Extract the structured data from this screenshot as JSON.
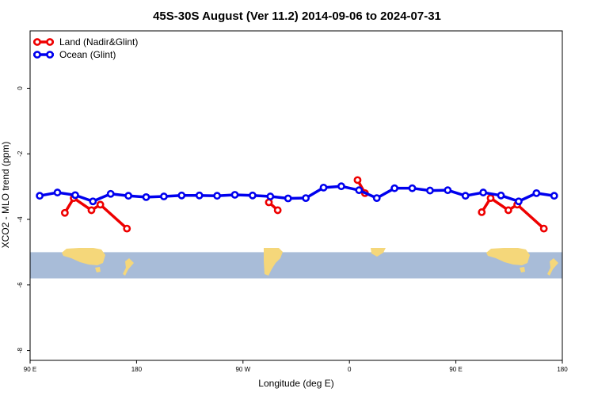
{
  "chart_data": {
    "type": "line",
    "title": "45S-30S August (Ver 11.2)   2014-09-06 to 2024-07-31",
    "xlabel": "Longitude (deg E)",
    "ylabel": "XCO2 - MLO trend (ppm)",
    "xlim": [
      90,
      450
    ],
    "ylim": [
      -8.3,
      1.75
    ],
    "xticks": [
      {
        "value": 90,
        "label": "90 E"
      },
      {
        "value": 162,
        "label": "180"
      },
      {
        "value": 234,
        "label": "90 W"
      },
      {
        "value": 306,
        "label": "0"
      },
      {
        "value": 378,
        "label": "90 E"
      },
      {
        "value": 450,
        "label": "180"
      }
    ],
    "yticks": [
      {
        "value": 0,
        "label": "0"
      },
      {
        "value": -2,
        "label": "-2"
      },
      {
        "value": -4,
        "label": "-4"
      },
      {
        "value": -6,
        "label": "-6"
      },
      {
        "value": -8,
        "label": "-8"
      }
    ],
    "map_strip": {
      "y_top": -5.0,
      "y_bottom": -5.8,
      "ocean_color": "#a8bcd8",
      "land_color": "#f5d77a"
    },
    "legend": {
      "placement": "top-left"
    },
    "series": [
      {
        "name": "Land (Nadir&Glint)",
        "color": "#ee0000",
        "segments": [
          [
            [
              113.5,
              -3.8
            ],
            [
              119.5,
              -3.35
            ],
            [
              131.5,
              -3.72
            ],
            [
              137.5,
              -3.55
            ],
            [
              155.5,
              -4.28
            ]
          ],
          [
            [
              251.5,
              -3.48
            ],
            [
              257.5,
              -3.72
            ]
          ],
          [
            [
              311.5,
              -2.8
            ],
            [
              316.5,
              -3.2
            ]
          ],
          [
            [
              395.5,
              -3.78
            ],
            [
              401.5,
              -3.35
            ],
            [
              413.5,
              -3.72
            ],
            [
              419.5,
              -3.55
            ],
            [
              437.5,
              -4.28
            ]
          ]
        ]
      },
      {
        "name": "Ocean (Glint)",
        "color": "#0000ee",
        "segments": [
          [
            [
              96.5,
              -3.28
            ],
            [
              108.5,
              -3.18
            ],
            [
              120.5,
              -3.26
            ],
            [
              132.5,
              -3.45
            ],
            [
              144.5,
              -3.22
            ],
            [
              156.5,
              -3.28
            ],
            [
              168.5,
              -3.32
            ],
            [
              180.5,
              -3.3
            ],
            [
              192.5,
              -3.27
            ],
            [
              204.5,
              -3.27
            ],
            [
              216.5,
              -3.28
            ],
            [
              228.5,
              -3.25
            ],
            [
              240.5,
              -3.27
            ],
            [
              252.5,
              -3.3
            ],
            [
              264.5,
              -3.36
            ],
            [
              276.5,
              -3.35
            ],
            [
              288.5,
              -3.03
            ],
            [
              300.5,
              -2.99
            ],
            [
              312.5,
              -3.11
            ],
            [
              324.5,
              -3.35
            ],
            [
              336.5,
              -3.05
            ],
            [
              348.5,
              -3.05
            ],
            [
              360.5,
              -3.12
            ],
            [
              372.5,
              -3.11
            ],
            [
              384.5,
              -3.28
            ],
            [
              396.5,
              -3.18
            ],
            [
              408.5,
              -3.27
            ],
            [
              420.5,
              -3.45
            ],
            [
              432.5,
              -3.2
            ],
            [
              444.5,
              -3.28
            ]
          ]
        ]
      }
    ]
  }
}
